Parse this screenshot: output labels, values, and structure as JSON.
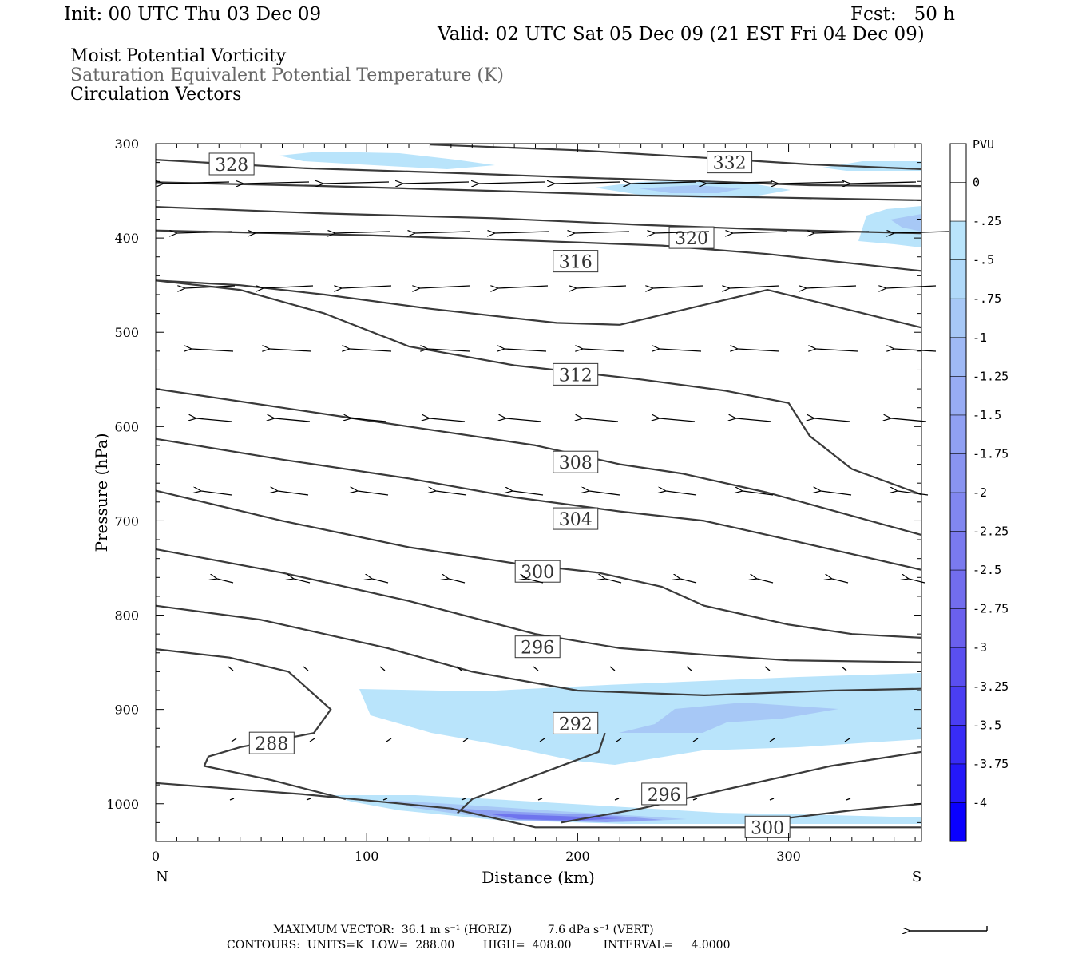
{
  "header": {
    "init": "Init: 00 UTC Thu 03 Dec 09",
    "fcst": "Fcst:   50 h",
    "valid": "Valid: 02 UTC Sat 05 Dec 09 (21 EST Fri 04 Dec 09)",
    "field1": "Moist Potential Vorticity",
    "field2": "Saturation Equivalent Potential Temperature (K)",
    "field3": "Circulation Vectors"
  },
  "footer": {
    "max_vector": "MAXIMUM VECTOR:  36.1 m s⁻¹ (HORIZ)          7.6 dPa s⁻¹ (VERT)",
    "contours": "CONTOURS:  UNITS=K  LOW=  288.00        HIGH=  408.00         INTERVAL=     4.0000"
  },
  "colors": {
    "fill_light": "#b9e4fb",
    "fill_mid": "#a7c8f6",
    "fill_blue": "#8c9ff2",
    "fill_deep": "#6f74ee",
    "contour": "#3a3a3a",
    "vector": "#000000"
  },
  "chart_data": {
    "type": "cross-section",
    "xlabel": "Distance (km)",
    "ylabel": "Pressure (hPa)",
    "xlim": [
      0,
      363
    ],
    "ylim": [
      1040,
      300
    ],
    "x_ticks": [
      0,
      100,
      200,
      300
    ],
    "x_end_labels": [
      "N",
      "S"
    ],
    "y_ticks": [
      300,
      400,
      500,
      600,
      700,
      800,
      900,
      1000
    ],
    "legend": {
      "title": "PVU",
      "levels": [
        "0",
        "-.25",
        "-.5",
        "-.75",
        "-1",
        "-1.25",
        "-1.5",
        "-1.75",
        "-2",
        "-2.25",
        "-2.5",
        "-2.75",
        "-3",
        "-3.25",
        "-3.5",
        "-3.75",
        "-4"
      ],
      "colors": [
        "#ffffff",
        "#ffffff",
        "#b9e4fb",
        "#b0d9f9",
        "#a7c8f6",
        "#9fb9f5",
        "#98acf4",
        "#90a0f3",
        "#8994f1",
        "#8187f0",
        "#7a7aef",
        "#726dee",
        "#6a60ed",
        "#5a4ff0",
        "#4a3ef3",
        "#382cf6",
        "#2418f9",
        "#0a00ff"
      ]
    },
    "contours": [
      {
        "label": "328",
        "label_pos": [
          36,
          322
        ],
        "points": [
          [
            0,
            317
          ],
          [
            70,
            326
          ],
          [
            140,
            331
          ],
          [
            200,
            336
          ],
          [
            260,
            340
          ],
          [
            310,
            344
          ],
          [
            363,
            345
          ]
        ]
      },
      {
        "label": "332",
        "label_pos": [
          272,
          320
        ],
        "points": [
          [
            130,
            301
          ],
          [
            200,
            307
          ],
          [
            260,
            315
          ],
          [
            310,
            322
          ],
          [
            363,
            327
          ]
        ]
      },
      {
        "label": "",
        "label_pos": null,
        "points": [
          [
            0,
            341
          ],
          [
            80,
            345
          ],
          [
            160,
            350
          ],
          [
            230,
            355
          ],
          [
            290,
            357
          ],
          [
            363,
            360
          ]
        ]
      },
      {
        "label": "",
        "label_pos": null,
        "points": [
          [
            0,
            367
          ],
          [
            80,
            374
          ],
          [
            160,
            379
          ],
          [
            230,
            386
          ],
          [
            290,
            391
          ],
          [
            363,
            395
          ]
        ]
      },
      {
        "label": "320",
        "label_pos": [
          254,
          400
        ],
        "points": [
          [
            0,
            392
          ],
          [
            100,
            397
          ],
          [
            180,
            403
          ],
          [
            240,
            408
          ],
          [
            290,
            417
          ],
          [
            363,
            435
          ]
        ]
      },
      {
        "label": "316",
        "label_pos": [
          199,
          425
        ],
        "points": [
          [
            0,
            445
          ],
          [
            40,
            450
          ],
          [
            80,
            460
          ],
          [
            130,
            475
          ],
          [
            190,
            490
          ],
          [
            220,
            492
          ],
          [
            290,
            455
          ],
          [
            363,
            495
          ]
        ]
      },
      {
        "label": "312",
        "label_pos": [
          199,
          545
        ],
        "points": [
          [
            0,
            445
          ],
          [
            40,
            455
          ],
          [
            80,
            480
          ],
          [
            120,
            515
          ],
          [
            170,
            535
          ],
          [
            230,
            550
          ],
          [
            270,
            562
          ],
          [
            300,
            575
          ],
          [
            310,
            610
          ],
          [
            330,
            645
          ],
          [
            363,
            672
          ]
        ]
      },
      {
        "label": "308",
        "label_pos": [
          199,
          638
        ],
        "points": [
          [
            0,
            560
          ],
          [
            60,
            580
          ],
          [
            120,
            600
          ],
          [
            180,
            620
          ],
          [
            220,
            640
          ],
          [
            250,
            650
          ],
          [
            290,
            670
          ],
          [
            363,
            715
          ]
        ]
      },
      {
        "label": "304",
        "label_pos": [
          199,
          698
        ],
        "points": [
          [
            0,
            613
          ],
          [
            60,
            635
          ],
          [
            120,
            655
          ],
          [
            170,
            675
          ],
          [
            220,
            690
          ],
          [
            260,
            700
          ],
          [
            300,
            720
          ],
          [
            363,
            752
          ]
        ]
      },
      {
        "label": "300",
        "label_pos": [
          181,
          754
        ],
        "points": [
          [
            0,
            668
          ],
          [
            60,
            700
          ],
          [
            120,
            728
          ],
          [
            170,
            745
          ],
          [
            210,
            755
          ],
          [
            240,
            770
          ],
          [
            260,
            790
          ],
          [
            280,
            800
          ],
          [
            300,
            810
          ],
          [
            330,
            820
          ],
          [
            363,
            824
          ]
        ]
      },
      {
        "label": "296",
        "label_pos": [
          181,
          834
        ],
        "points": [
          [
            0,
            730
          ],
          [
            60,
            755
          ],
          [
            120,
            785
          ],
          [
            180,
            820
          ],
          [
            220,
            835
          ],
          [
            260,
            842
          ],
          [
            300,
            848
          ],
          [
            363,
            850
          ]
        ]
      },
      {
        "label": "292",
        "label_pos": [
          199,
          915
        ],
        "points": [
          [
            0,
            790
          ],
          [
            50,
            805
          ],
          [
            110,
            835
          ],
          [
            150,
            860
          ],
          [
            200,
            880
          ],
          [
            260,
            885
          ],
          [
            320,
            880
          ],
          [
            363,
            878
          ]
        ]
      },
      {
        "label": "288",
        "label_pos": [
          55,
          936
        ],
        "points": [
          [
            0,
            836
          ],
          [
            35,
            845
          ],
          [
            63,
            860
          ],
          [
            83,
            900
          ],
          [
            75,
            925
          ],
          [
            40,
            940
          ],
          [
            25,
            950
          ],
          [
            23,
            960
          ],
          [
            55,
            975
          ],
          [
            90,
            995
          ]
        ]
      },
      {
        "label": "",
        "label_pos": null,
        "points": [
          [
            143,
            1010
          ],
          [
            150,
            995
          ],
          [
            180,
            970
          ],
          [
            210,
            945
          ],
          [
            213,
            925
          ]
        ]
      },
      {
        "label": "296",
        "label_pos": [
          241,
          990
        ],
        "points": [
          [
            192,
            1020
          ],
          [
            230,
            1005
          ],
          [
            270,
            985
          ],
          [
            320,
            960
          ],
          [
            363,
            945
          ]
        ]
      },
      {
        "label": "300",
        "label_pos": [
          290,
          1025
        ],
        "points": [
          [
            300,
            1015
          ],
          [
            330,
            1007
          ],
          [
            363,
            1000
          ]
        ]
      },
      {
        "label": "",
        "label_pos": null,
        "points": [
          [
            0,
            978
          ],
          [
            70,
            990
          ],
          [
            140,
            1005
          ],
          [
            180,
            1025
          ],
          [
            363,
            1025
          ]
        ]
      }
    ]
  }
}
